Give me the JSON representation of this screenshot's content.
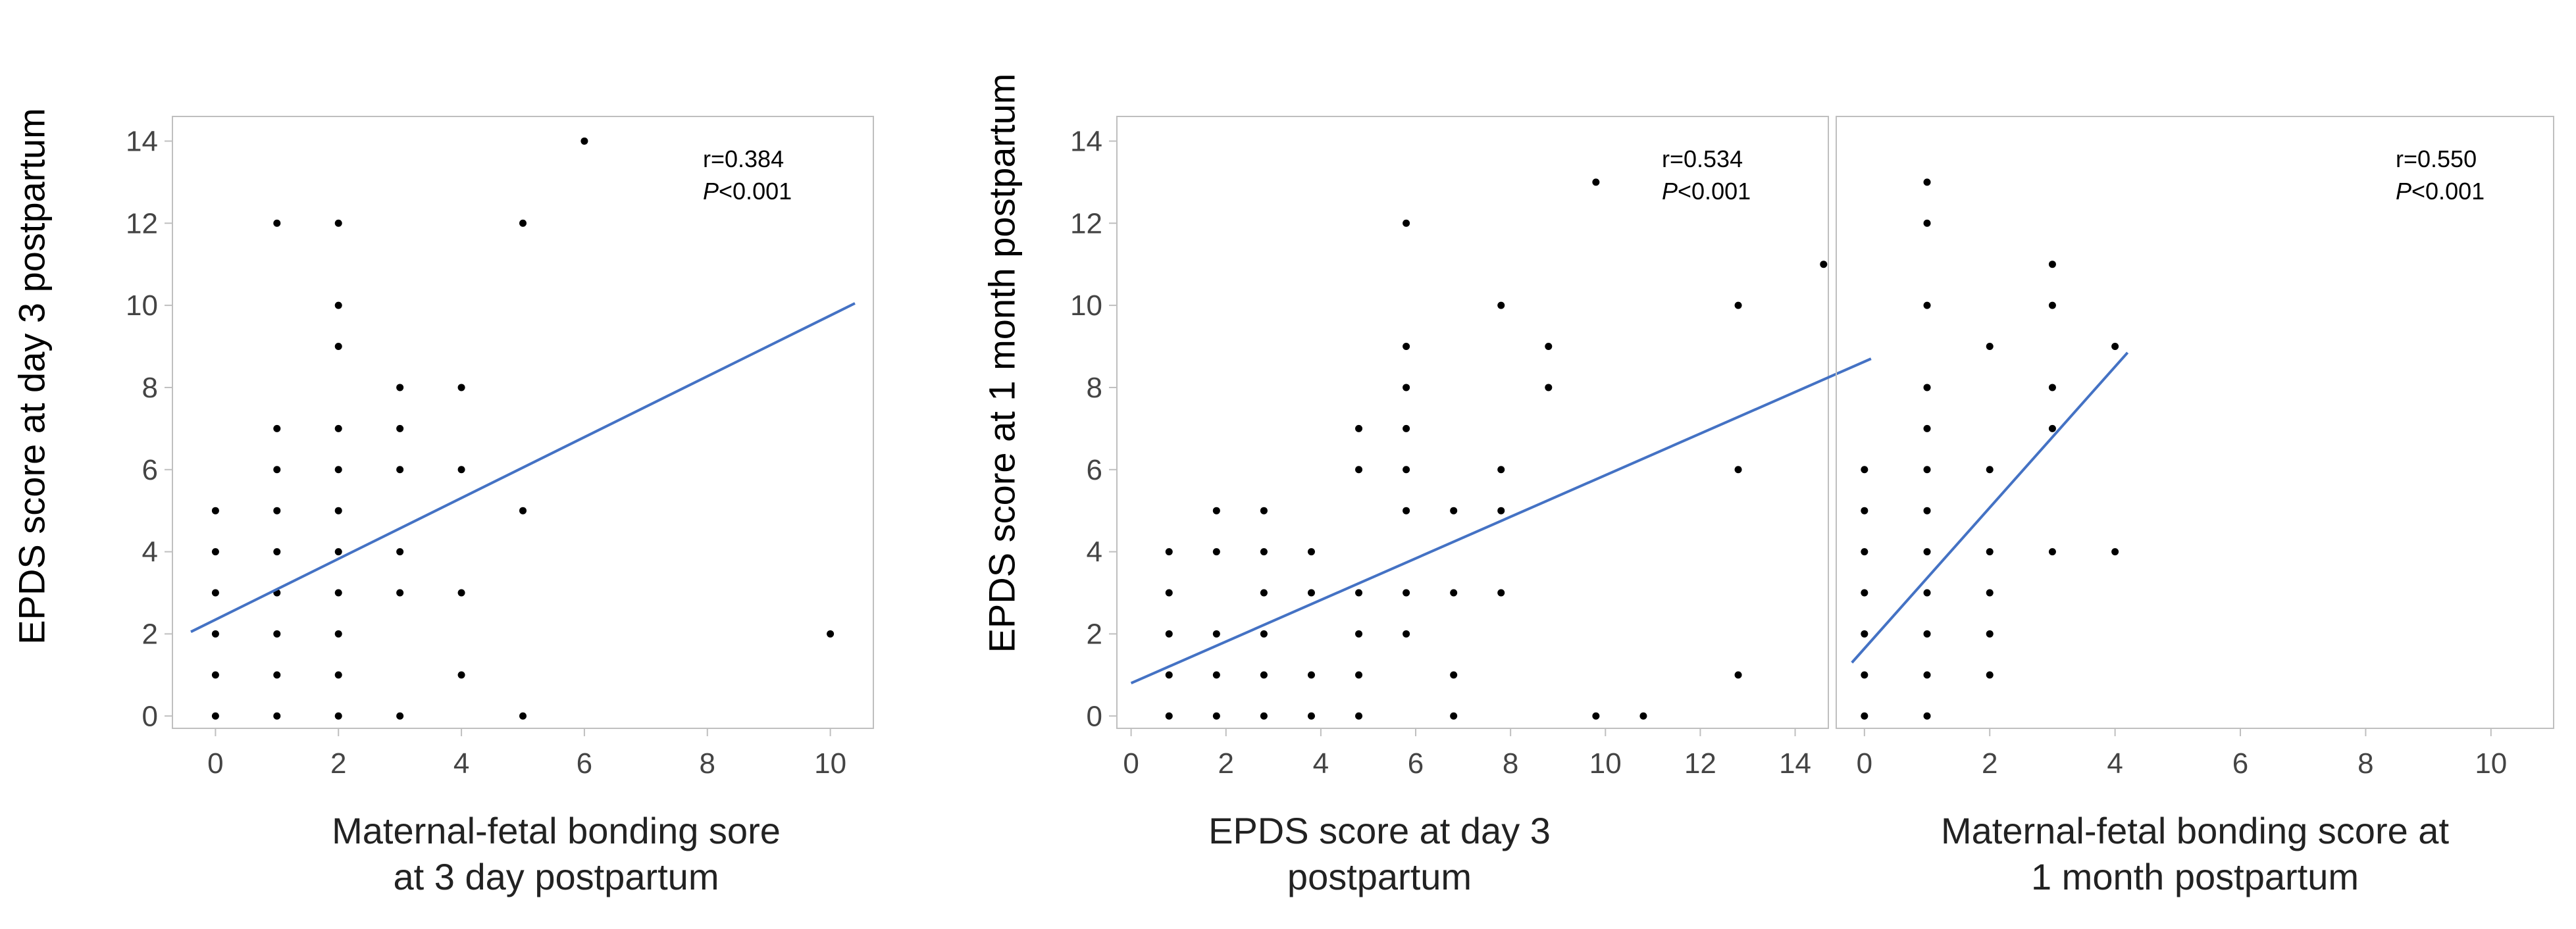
{
  "chart_data": [
    {
      "type": "scatter",
      "xlabel_lines": [
        "Maternal-fetal  bonding sore",
        "at 3 day postpartum"
      ],
      "ylabel": "EPDS score at day 3 postpartum",
      "xticks": [
        0,
        2,
        4,
        6,
        8,
        10
      ],
      "yticks": [
        0,
        2,
        4,
        6,
        8,
        10,
        12,
        14
      ],
      "xlim": [
        -0.7,
        10.7
      ],
      "ylim": [
        -0.3,
        14.6
      ],
      "points": [
        [
          0,
          0
        ],
        [
          0,
          1
        ],
        [
          0,
          2
        ],
        [
          0,
          3
        ],
        [
          0,
          4
        ],
        [
          0,
          5
        ],
        [
          1,
          0
        ],
        [
          1,
          1
        ],
        [
          1,
          2
        ],
        [
          1,
          3
        ],
        [
          1,
          4
        ],
        [
          1,
          5
        ],
        [
          1,
          6
        ],
        [
          1,
          7
        ],
        [
          1,
          12
        ],
        [
          2,
          0
        ],
        [
          2,
          1
        ],
        [
          2,
          2
        ],
        [
          2,
          3
        ],
        [
          2,
          4
        ],
        [
          2,
          5
        ],
        [
          2,
          6
        ],
        [
          2,
          7
        ],
        [
          2,
          9
        ],
        [
          2,
          10
        ],
        [
          2,
          12
        ],
        [
          3,
          0
        ],
        [
          3,
          3
        ],
        [
          3,
          4
        ],
        [
          3,
          6
        ],
        [
          3,
          7
        ],
        [
          3,
          8
        ],
        [
          4,
          1
        ],
        [
          4,
          3
        ],
        [
          4,
          6
        ],
        [
          4,
          8
        ],
        [
          5,
          0
        ],
        [
          5,
          5
        ],
        [
          5,
          12
        ],
        [
          6,
          14
        ],
        [
          10,
          2
        ]
      ],
      "fit_line": {
        "x": [
          -0.4,
          10.4
        ],
        "y": [
          2.05,
          10.05
        ],
        "color": "#4472c4"
      },
      "r_label": "r=0.384",
      "p_symbol": "P",
      "p_rest": "<0.001"
    },
    {
      "type": "scatter",
      "xlabel_lines": [
        "EPDS score at day 3",
        "postpartum"
      ],
      "ylabel": "EPDS score at 1 month postpartum",
      "xticks": [
        0,
        2,
        4,
        6,
        8,
        10,
        12,
        14
      ],
      "yticks": [
        0,
        2,
        4,
        6,
        8,
        10,
        12,
        14
      ],
      "xlim": [
        -0.3,
        14.7
      ],
      "ylim": [
        -0.3,
        14.6
      ],
      "points": [
        [
          0.8,
          0
        ],
        [
          0.8,
          1
        ],
        [
          0.8,
          2
        ],
        [
          0.8,
          3
        ],
        [
          0.8,
          4
        ],
        [
          1.8,
          0
        ],
        [
          1.8,
          1
        ],
        [
          1.8,
          2
        ],
        [
          1.8,
          4
        ],
        [
          1.8,
          5
        ],
        [
          2.8,
          0
        ],
        [
          2.8,
          1
        ],
        [
          2.8,
          2
        ],
        [
          2.8,
          3
        ],
        [
          2.8,
          4
        ],
        [
          2.8,
          5
        ],
        [
          3.8,
          0
        ],
        [
          3.8,
          1
        ],
        [
          3.8,
          3
        ],
        [
          3.8,
          4
        ],
        [
          4.8,
          0
        ],
        [
          4.8,
          1
        ],
        [
          4.8,
          2
        ],
        [
          4.8,
          3
        ],
        [
          4.8,
          6
        ],
        [
          4.8,
          7
        ],
        [
          5.8,
          2
        ],
        [
          5.8,
          3
        ],
        [
          5.8,
          5
        ],
        [
          5.8,
          6
        ],
        [
          5.8,
          7
        ],
        [
          5.8,
          8
        ],
        [
          5.8,
          9
        ],
        [
          5.8,
          12
        ],
        [
          6.8,
          0
        ],
        [
          6.8,
          1
        ],
        [
          6.8,
          3
        ],
        [
          6.8,
          5
        ],
        [
          7.8,
          3
        ],
        [
          7.8,
          5
        ],
        [
          7.8,
          6
        ],
        [
          7.8,
          10
        ],
        [
          8.8,
          8
        ],
        [
          8.8,
          9
        ],
        [
          9.8,
          0
        ],
        [
          9.8,
          13
        ],
        [
          10.8,
          0
        ],
        [
          12.8,
          1
        ],
        [
          12.8,
          6
        ],
        [
          12.8,
          10
        ],
        [
          14.6,
          11
        ]
      ],
      "fit_line": {
        "x": [
          0,
          15.6
        ],
        "y": [
          0.8,
          8.7
        ],
        "color": "#4472c4"
      },
      "r_label": "r=0.534",
      "p_symbol": "P",
      "p_rest": "<0.001"
    },
    {
      "type": "scatter",
      "xlabel_lines": [
        "Maternal-fetal  bonding score at",
        "1 month postpartum"
      ],
      "ylabel": "",
      "xticks": [
        0,
        2,
        4,
        6,
        8,
        10
      ],
      "yticks": [],
      "xlim": [
        -0.45,
        11.0
      ],
      "ylim": [
        -0.3,
        14.6
      ],
      "points": [
        [
          0,
          0
        ],
        [
          0,
          1
        ],
        [
          0,
          2
        ],
        [
          0,
          3
        ],
        [
          0,
          4
        ],
        [
          0,
          5
        ],
        [
          0,
          6
        ],
        [
          1,
          0
        ],
        [
          1,
          1
        ],
        [
          1,
          2
        ],
        [
          1,
          3
        ],
        [
          1,
          4
        ],
        [
          1,
          5
        ],
        [
          1,
          6
        ],
        [
          1,
          7
        ],
        [
          1,
          8
        ],
        [
          1,
          10
        ],
        [
          1,
          12
        ],
        [
          1,
          13
        ],
        [
          2,
          1
        ],
        [
          2,
          2
        ],
        [
          2,
          3
        ],
        [
          2,
          4
        ],
        [
          2,
          6
        ],
        [
          2,
          9
        ],
        [
          3,
          4
        ],
        [
          3,
          7
        ],
        [
          3,
          8
        ],
        [
          3,
          10
        ],
        [
          3,
          11
        ],
        [
          4,
          4
        ],
        [
          4,
          9
        ]
      ],
      "fit_line": {
        "x": [
          -0.2,
          4.2
        ],
        "y": [
          1.3,
          8.85
        ],
        "color": "#4472c4"
      },
      "r_label": "r=0.550",
      "p_symbol": "P",
      "p_rest": "<0.001"
    }
  ]
}
